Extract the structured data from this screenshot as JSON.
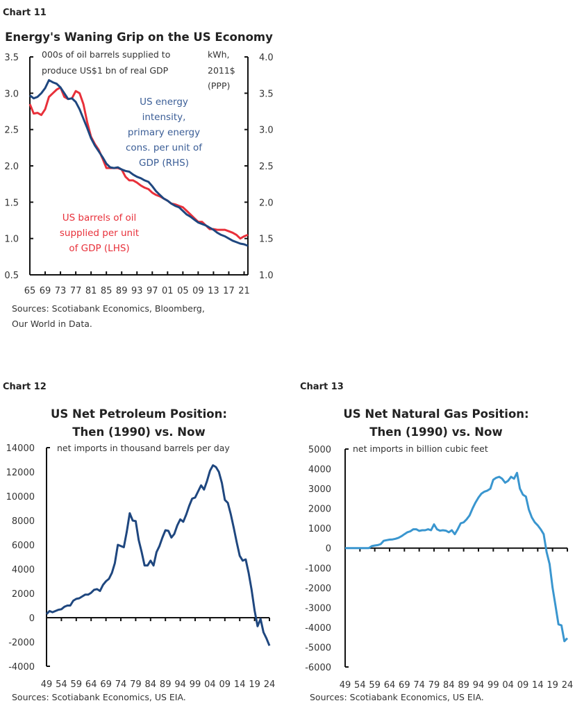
{
  "chart_data": [
    {
      "label": "Chart 11",
      "type": "line",
      "title": "Energy's Waning Grip on the US Economy",
      "left_unit": "000s of oil barrels supplied to produce US$1 bn of real GDP",
      "right_unit": "kWh, 2011$ (PPP)",
      "x": [
        1965,
        1966,
        1967,
        1968,
        1969,
        1970,
        1971,
        1972,
        1973,
        1974,
        1975,
        1976,
        1977,
        1978,
        1979,
        1980,
        1981,
        1982,
        1983,
        1984,
        1985,
        1986,
        1987,
        1988,
        1989,
        1990,
        1991,
        1992,
        1993,
        1994,
        1995,
        1996,
        1997,
        1998,
        1999,
        2000,
        2001,
        2002,
        2003,
        2004,
        2005,
        2006,
        2007,
        2008,
        2009,
        2010,
        2011,
        2012,
        2013,
        2014,
        2015,
        2016,
        2017,
        2018,
        2019,
        2020,
        2021,
        2022
      ],
      "x_tick_labels": [
        "65",
        "69",
        "73",
        "77",
        "81",
        "85",
        "89",
        "93",
        "97",
        "01",
        "05",
        "09",
        "13",
        "17",
        "21"
      ],
      "ylim_left": [
        0.5,
        3.5
      ],
      "ylim_right": [
        1.0,
        4.0
      ],
      "yticks_left": [
        "0.5",
        "1.0",
        "1.5",
        "2.0",
        "2.5",
        "3.0",
        "3.5"
      ],
      "yticks_right": [
        "1.0",
        "1.5",
        "2.0",
        "2.5",
        "3.0",
        "3.5",
        "4.0"
      ],
      "series": [
        {
          "name": "US barrels of oil supplied per unit of GDP (LHS)",
          "axis": "left",
          "color": "#e8303a",
          "values": [
            2.85,
            2.72,
            2.73,
            2.7,
            2.78,
            2.95,
            3.0,
            3.05,
            3.08,
            2.95,
            2.92,
            2.93,
            3.03,
            3.0,
            2.85,
            2.6,
            2.4,
            2.3,
            2.22,
            2.1,
            1.97,
            1.97,
            1.97,
            1.97,
            1.95,
            1.85,
            1.8,
            1.8,
            1.77,
            1.73,
            1.7,
            1.68,
            1.63,
            1.6,
            1.58,
            1.55,
            1.52,
            1.48,
            1.47,
            1.45,
            1.43,
            1.38,
            1.33,
            1.28,
            1.23,
            1.23,
            1.18,
            1.13,
            1.13,
            1.12,
            1.12,
            1.12,
            1.1,
            1.08,
            1.05,
            1.0,
            1.03,
            1.05
          ]
        },
        {
          "name": "US energy intensity, primary energy cons. per unit of GDP (RHS)",
          "axis": "right",
          "color": "#1f477f",
          "values": [
            3.47,
            3.43,
            3.45,
            3.5,
            3.57,
            3.68,
            3.65,
            3.63,
            3.58,
            3.5,
            3.42,
            3.43,
            3.38,
            3.28,
            3.15,
            3.02,
            2.88,
            2.78,
            2.7,
            2.62,
            2.53,
            2.48,
            2.47,
            2.48,
            2.45,
            2.43,
            2.42,
            2.38,
            2.35,
            2.33,
            2.3,
            2.28,
            2.22,
            2.15,
            2.1,
            2.05,
            2.02,
            1.98,
            1.95,
            1.93,
            1.88,
            1.83,
            1.8,
            1.76,
            1.72,
            1.7,
            1.68,
            1.65,
            1.62,
            1.58,
            1.55,
            1.53,
            1.5,
            1.47,
            1.45,
            1.43,
            1.42,
            1.4
          ]
        }
      ],
      "annotations": {
        "blue": [
          "US energy",
          "intensity,",
          "primary energy",
          "cons. per unit of",
          "GDP (RHS)"
        ],
        "red": [
          "US barrels of oil",
          "supplied per unit",
          "of GDP (LHS)"
        ]
      },
      "source": [
        "Sources: Scotiabank Economics, Bloomberg,",
        "Our World in Data."
      ],
      "grid": false
    },
    {
      "label": "Chart 12",
      "type": "line",
      "title": [
        "US Net Petroleum Position:",
        "Then (1990) vs. Now"
      ],
      "subtitle": "net imports in thousand barrels per day",
      "x_start": 1949,
      "x_tick_labels": [
        "49",
        "54",
        "59",
        "64",
        "69",
        "74",
        "79",
        "84",
        "89",
        "94",
        "99",
        "04",
        "09",
        "14",
        "19",
        "24"
      ],
      "ylim": [
        -4000,
        14000
      ],
      "yticks": [
        "-4000",
        "-2000",
        "0",
        "2000",
        "4000",
        "6000",
        "8000",
        "10000",
        "12000",
        "14000"
      ],
      "color": "#1f477f",
      "values": [
        300,
        550,
        450,
        550,
        650,
        700,
        900,
        1000,
        1000,
        1400,
        1550,
        1600,
        1750,
        1900,
        1900,
        2050,
        2300,
        2350,
        2200,
        2700,
        3000,
        3200,
        3700,
        4500,
        6000,
        5900,
        5800,
        7100,
        8600,
        8000,
        7950,
        6400,
        5400,
        4300,
        4300,
        4700,
        4300,
        5400,
        5900,
        6600,
        7200,
        7150,
        6600,
        6900,
        7600,
        8100,
        7900,
        8500,
        9200,
        9800,
        9900,
        10400,
        10900,
        10550,
        11250,
        12100,
        12550,
        12400,
        12000,
        11100,
        9700,
        9450,
        8500,
        7400,
        6200,
        5100,
        4700,
        4800,
        3700,
        2300,
        600,
        -700,
        -100,
        -1200,
        -1700,
        -2300
      ],
      "source": "Sources: Scotiabank Economics, US EIA.",
      "grid": false
    },
    {
      "label": "Chart 13",
      "type": "line",
      "title": [
        "US Net Natural Gas Position:",
        "Then (1990) vs. Now"
      ],
      "subtitle": "net imports in billion cubic feet",
      "x_start": 1949,
      "x_tick_labels": [
        "49",
        "54",
        "59",
        "64",
        "69",
        "74",
        "79",
        "84",
        "89",
        "94",
        "99",
        "04",
        "09",
        "14",
        "19",
        "24"
      ],
      "ylim": [
        -6000,
        5000
      ],
      "yticks": [
        "-6000",
        "-5000",
        "-4000",
        "-3000",
        "-2000",
        "-1000",
        "0",
        "1000",
        "2000",
        "3000",
        "4000",
        "5000"
      ],
      "color": "#3a96cf",
      "values": [
        0,
        0,
        0,
        0,
        0,
        0,
        0,
        0,
        0,
        100,
        130,
        150,
        200,
        370,
        400,
        430,
        440,
        470,
        520,
        600,
        700,
        800,
        850,
        950,
        950,
        870,
        900,
        900,
        950,
        900,
        1200,
        950,
        880,
        900,
        880,
        800,
        900,
        700,
        950,
        1250,
        1300,
        1450,
        1650,
        2000,
        2300,
        2550,
        2750,
        2850,
        2900,
        3000,
        3450,
        3550,
        3600,
        3500,
        3300,
        3400,
        3600,
        3500,
        3800,
        3000,
        2700,
        2600,
        1950,
        1550,
        1300,
        1150,
        950,
        700,
        -200,
        -800,
        -2000,
        -2900,
        -3850,
        -3900,
        -4700,
        -4550
      ],
      "source": "Sources: Scotiabank Economics, US EIA.",
      "grid": false
    }
  ]
}
